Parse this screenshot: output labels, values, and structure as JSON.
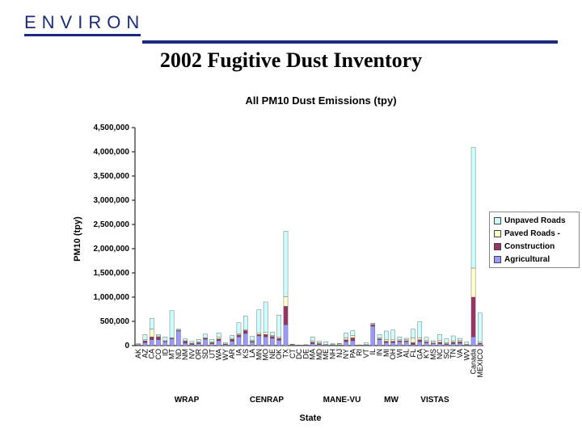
{
  "header": {
    "logo_text": "ENVIRON",
    "title": "2002 Fugitive Dust Inventory"
  },
  "colors": {
    "unpaved": "#ccffff",
    "paved": "#ffffcc",
    "construction": "#993366",
    "agricultural": "#9999ff",
    "brand": "#1b2a7d"
  },
  "chart_data": {
    "type": "bar",
    "stacked": true,
    "title": "All PM10 Dust Emissions (tpy)",
    "ylabel": "PM10 (tpy)",
    "xlabel": "State",
    "ylim": [
      0,
      4500000
    ],
    "yticks": [
      "0",
      "500,000",
      "1,000,000",
      "1,500,000",
      "2,000,000",
      "2,500,000",
      "3,000,000",
      "3,500,000",
      "4,000,000",
      "4,500,000"
    ],
    "categories": [
      "AK",
      "AZ",
      "CA",
      "CO",
      "ID",
      "MT",
      "ND",
      "NM",
      "NV",
      "OR",
      "SD",
      "UT",
      "WA",
      "WY",
      "AR",
      "IA",
      "KS",
      "LA",
      "MN",
      "MO",
      "NE",
      "OK",
      "TX",
      "CT",
      "DC",
      "DE",
      "MA",
      "MD",
      "ME",
      "NH",
      "NJ",
      "NY",
      "PA",
      "RI",
      "VT",
      "IL",
      "IN",
      "MI",
      "OH",
      "WI",
      "AL",
      "FL",
      "GA",
      "KY",
      "MS",
      "NC",
      "SC",
      "TN",
      "VA",
      "WV",
      "Canada",
      "MEXICO"
    ],
    "series": [
      {
        "name": "Agricultural",
        "values": [
          10000,
          60000,
          120000,
          120000,
          80000,
          140000,
          300000,
          50000,
          20000,
          40000,
          130000,
          40000,
          100000,
          20000,
          90000,
          180000,
          250000,
          70000,
          200000,
          180000,
          150000,
          110000,
          430000,
          10000,
          2000,
          5000,
          40000,
          20000,
          10000,
          10000,
          5000,
          80000,
          100000,
          2000,
          10000,
          400000,
          120000,
          60000,
          60000,
          80000,
          80000,
          20000,
          80000,
          60000,
          40000,
          40000,
          20000,
          40000,
          50000,
          10000,
          180000,
          30000
        ]
      },
      {
        "name": "Construction",
        "values": [
          10000,
          40000,
          60000,
          60000,
          10000,
          10000,
          10000,
          40000,
          20000,
          20000,
          20000,
          20000,
          40000,
          10000,
          40000,
          40000,
          60000,
          20000,
          30000,
          50000,
          40000,
          40000,
          380000,
          5000,
          3000,
          3000,
          30000,
          20000,
          5000,
          5000,
          10000,
          40000,
          60000,
          2000,
          3000,
          30000,
          20000,
          30000,
          30000,
          20000,
          20000,
          40000,
          40000,
          20000,
          10000,
          30000,
          20000,
          30000,
          30000,
          5000,
          820000,
          20000
        ]
      },
      {
        "name": "Paved Roads -",
        "values": [
          2000,
          30000,
          160000,
          20000,
          10000,
          10000,
          10000,
          10000,
          10000,
          10000,
          10000,
          10000,
          30000,
          5000,
          20000,
          20000,
          20000,
          20000,
          30000,
          40000,
          20000,
          30000,
          200000,
          10000,
          5000,
          5000,
          30000,
          20000,
          5000,
          5000,
          20000,
          40000,
          50000,
          5000,
          5000,
          20000,
          20000,
          40000,
          40000,
          20000,
          20000,
          100000,
          40000,
          30000,
          20000,
          40000,
          20000,
          30000,
          30000,
          10000,
          600000,
          20000
        ]
      },
      {
        "name": "Unpaved Roads",
        "values": [
          20000,
          100000,
          220000,
          30000,
          80000,
          560000,
          20000,
          40000,
          40000,
          60000,
          80000,
          60000,
          90000,
          30000,
          60000,
          230000,
          280000,
          80000,
          480000,
          630000,
          70000,
          450000,
          1350000,
          5000,
          3000,
          5000,
          80000,
          30000,
          60000,
          20000,
          10000,
          100000,
          100000,
          5000,
          40000,
          10000,
          70000,
          170000,
          190000,
          60000,
          30000,
          180000,
          330000,
          60000,
          30000,
          120000,
          80000,
          100000,
          40000,
          50000,
          2490000,
          600000
        ]
      }
    ],
    "regions": [
      "WRAP",
      "CENRAP",
      "MANE-VU",
      "MW",
      "VISTAS"
    ],
    "legend_position": "right",
    "grid": false
  }
}
